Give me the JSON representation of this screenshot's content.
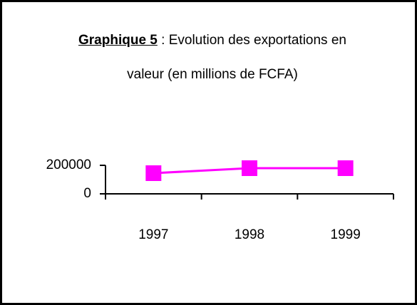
{
  "chart_data": {
    "type": "line",
    "title_label": "Graphique 5",
    "title": ": Evolution des exportations en valeur (en millions de FCFA)",
    "categories": [
      "1997",
      "1998",
      "1999"
    ],
    "series": [
      {
        "color": "#ff00ff",
        "values": [
          145000,
          180000,
          180000
        ]
      }
    ],
    "ylim": [
      0,
      200000
    ],
    "yticks": [
      0,
      200000
    ],
    "grid": false
  }
}
